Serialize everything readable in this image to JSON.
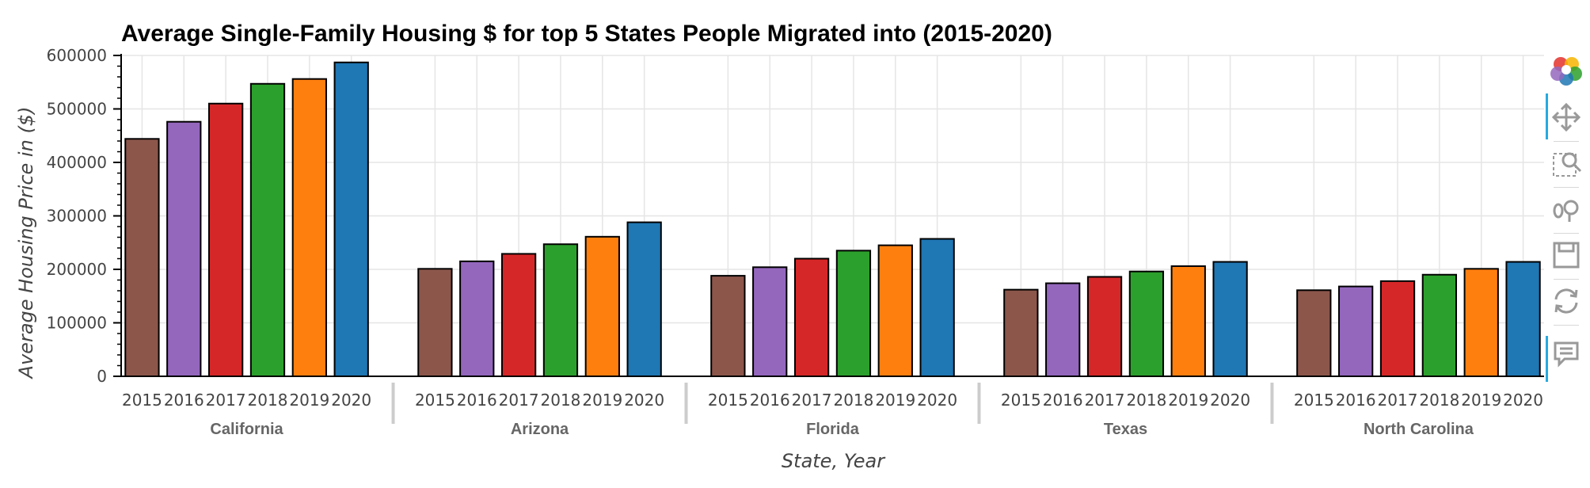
{
  "chart_data": {
    "type": "bar",
    "title": "Average Single-Family Housing $ for top 5 States People Migrated into (2015-2020)",
    "xlabel": "State, Year",
    "ylabel": "Average Housing Price in ($)",
    "ylim": [
      0,
      600000
    ],
    "yticks": [
      "0",
      "100000",
      "200000",
      "300000",
      "400000",
      "500000",
      "600000"
    ],
    "grid": true,
    "groups": [
      "California",
      "Arizona",
      "Florida",
      "Texas",
      "North Carolina"
    ],
    "years": [
      "2015",
      "2016",
      "2017",
      "2018",
      "2019",
      "2020"
    ],
    "colors": [
      "#8c564b",
      "#9467bd",
      "#d62728",
      "#2ca02c",
      "#ff7f0e",
      "#1f77b4"
    ],
    "values": [
      [
        444000,
        476000,
        510000,
        547000,
        556000,
        587000
      ],
      [
        201000,
        215000,
        229000,
        247000,
        261000,
        288000
      ],
      [
        188000,
        204000,
        220000,
        235000,
        245000,
        257000
      ],
      [
        162000,
        174000,
        186000,
        196000,
        206000,
        214000
      ],
      [
        161000,
        168000,
        178000,
        190000,
        201000,
        214000
      ]
    ]
  },
  "toolbar": {
    "tools": [
      "bokeh-logo-icon",
      "pan-icon",
      "box-zoom-icon",
      "wheel-zoom-icon",
      "save-icon",
      "reset-icon",
      "hover-icon"
    ]
  }
}
